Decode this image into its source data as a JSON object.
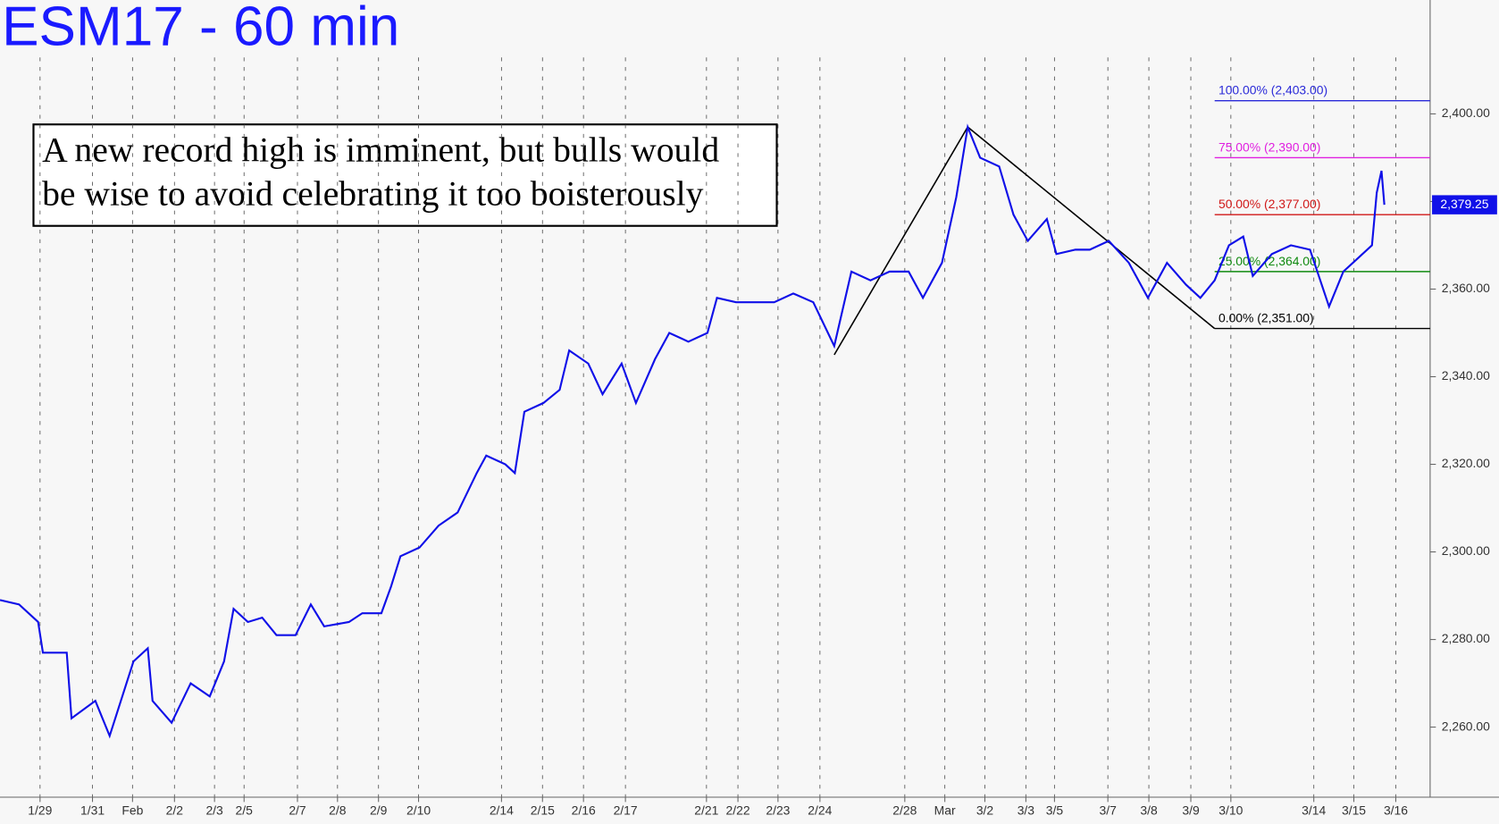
{
  "chart_data": {
    "type": "line",
    "title": "ESM17 - 60 min",
    "annotation": [
      "A new record high is imminent, but bulls would",
      "be wise to avoid celebrating it too boisterously"
    ],
    "series": [
      {
        "name": "ESM17",
        "color": "#1010e8",
        "x": [
          0,
          2,
          4,
          4.5,
          7,
          7.5,
          10,
          11.5,
          14,
          15.5,
          16,
          18,
          20,
          22,
          23.5,
          24.5,
          26,
          27.5,
          29,
          31,
          32.6,
          34,
          36.6,
          38,
          40,
          41,
          42,
          44,
          46,
          48,
          50,
          51,
          53,
          54,
          55,
          57,
          58.7,
          59.7,
          61.7,
          63.2,
          65.2,
          66.7,
          68.7,
          70.2,
          72.2,
          74.2,
          75.2,
          77.2,
          79.2,
          81.2,
          83.2,
          85.3,
          87.5,
          89.3,
          91.3,
          93.3,
          95.3,
          96.8,
          98.8,
          100.3,
          101.5,
          102.8,
          104.8,
          106.3,
          107.8,
          109.8,
          110.8,
          112.8,
          114.3,
          116.3,
          118.4,
          120.4,
          122.4,
          124.4,
          125.9,
          127.4,
          128.9,
          130.4,
          131.4,
          133.4,
          135.4,
          137.4,
          139.4,
          140.9,
          142.4,
          143.9,
          144.4,
          144.9,
          145.2
        ],
        "values": [
          2289,
          2288,
          2284,
          2277,
          2277,
          2262,
          2266,
          2258,
          2275,
          2278,
          2266,
          2261,
          2270,
          2267,
          2275,
          2287,
          2284,
          2285,
          2281,
          2281,
          2288,
          2283,
          2284,
          2286,
          2286,
          2292,
          2299,
          2301,
          2306,
          2309,
          2318,
          2322,
          2320,
          2318,
          2332,
          2334,
          2337,
          2346,
          2343,
          2336,
          2343,
          2334,
          2344,
          2350,
          2348,
          2350,
          2358,
          2357,
          2357,
          2357,
          2359,
          2357,
          2347,
          2364,
          2362,
          2364,
          2364,
          2358,
          2366,
          2381,
          2397,
          2390,
          2388,
          2377,
          2371,
          2376,
          2368,
          2369,
          2369,
          2371,
          2366,
          2358,
          2366,
          2361,
          2358,
          2362,
          2370,
          2372,
          2363,
          2368,
          2370,
          2369,
          2356,
          2364,
          2367,
          2370,
          2382,
          2387,
          2379.25
        ]
      }
    ],
    "last_price": {
      "value": 2379.25,
      "label": "2,379.25"
    },
    "trend_line": {
      "x": [
        87.5,
        101.5,
        127.4
      ],
      "values": [
        2345,
        2397,
        2351
      ]
    },
    "levels": [
      {
        "value": 2403,
        "label": "100.00% (2,403.00)",
        "color": "#2a2ad8"
      },
      {
        "value": 2390,
        "label": "75.00% (2,390.00)",
        "color": "#e020e0"
      },
      {
        "value": 2377,
        "label": "50.00% (2,377.00)",
        "color": "#d01818"
      },
      {
        "value": 2364,
        "label": "25.00% (2,364.00)",
        "color": "#108a10"
      },
      {
        "value": 2351,
        "label": "0.00% (2,351.00)",
        "color": "#000000"
      }
    ],
    "levels_start": 127.4,
    "xlim": [
      0,
      150
    ],
    "ylim": [
      2244,
      2426
    ],
    "yticks": [
      {
        "value": 2260,
        "label": "2,260.00"
      },
      {
        "value": 2280,
        "label": "2,280.00"
      },
      {
        "value": 2300,
        "label": "2,300.00"
      },
      {
        "value": 2320,
        "label": "2,320.00"
      },
      {
        "value": 2340,
        "label": "2,340.00"
      },
      {
        "value": 2360,
        "label": "2,360.00"
      },
      {
        "value": 2380,
        "label": "2,380.00"
      },
      {
        "value": 2400,
        "label": "2,400.00"
      }
    ],
    "xticks": [
      {
        "value": 4.2,
        "label": "1/29"
      },
      {
        "value": 9.7,
        "label": "1/31"
      },
      {
        "value": 13.9,
        "label": "Feb"
      },
      {
        "value": 18.3,
        "label": "2/2"
      },
      {
        "value": 22.5,
        "label": "2/3"
      },
      {
        "value": 25.6,
        "label": "2/5"
      },
      {
        "value": 31.2,
        "label": "2/7"
      },
      {
        "value": 35.4,
        "label": "2/8"
      },
      {
        "value": 39.7,
        "label": "2/9"
      },
      {
        "value": 43.9,
        "label": "2/10"
      },
      {
        "value": 52.6,
        "label": "2/14"
      },
      {
        "value": 56.9,
        "label": "2/15"
      },
      {
        "value": 61.2,
        "label": "2/16"
      },
      {
        "value": 65.6,
        "label": "2/17"
      },
      {
        "value": 74.1,
        "label": "2/21"
      },
      {
        "value": 77.4,
        "label": "2/22"
      },
      {
        "value": 81.6,
        "label": "2/23"
      },
      {
        "value": 86,
        "label": "2/24"
      },
      {
        "value": 94.9,
        "label": "2/28"
      },
      {
        "value": 99.1,
        "label": "Mar"
      },
      {
        "value": 103.3,
        "label": "3/2"
      },
      {
        "value": 107.6,
        "label": "3/3"
      },
      {
        "value": 110.6,
        "label": "3/5"
      },
      {
        "value": 116.2,
        "label": "3/7"
      },
      {
        "value": 120.5,
        "label": "3/8"
      },
      {
        "value": 124.9,
        "label": "3/9"
      },
      {
        "value": 129.1,
        "label": "3/10"
      },
      {
        "value": 137.8,
        "label": "3/14"
      },
      {
        "value": 142,
        "label": "3/15"
      },
      {
        "value": 146.4,
        "label": "3/16"
      }
    ],
    "grid": true
  }
}
